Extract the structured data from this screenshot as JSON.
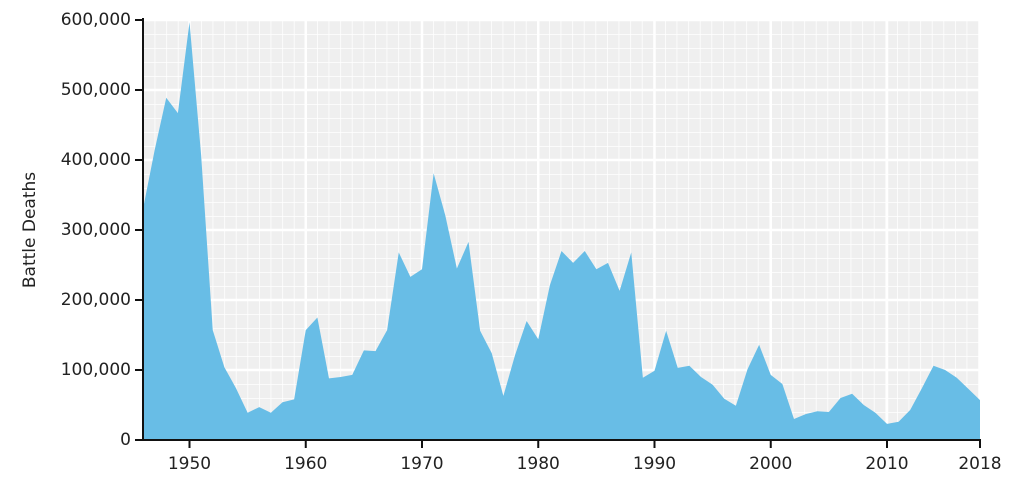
{
  "chart_data": {
    "type": "area",
    "y_label": "Battle Deaths",
    "x": [
      1946,
      1947,
      1948,
      1949,
      1950,
      1951,
      1952,
      1953,
      1954,
      1955,
      1956,
      1957,
      1958,
      1959,
      1960,
      1961,
      1962,
      1963,
      1964,
      1965,
      1966,
      1967,
      1968,
      1969,
      1970,
      1971,
      1972,
      1973,
      1974,
      1975,
      1976,
      1977,
      1978,
      1979,
      1980,
      1981,
      1982,
      1983,
      1984,
      1985,
      1986,
      1987,
      1988,
      1989,
      1990,
      1991,
      1992,
      1993,
      1994,
      1995,
      1996,
      1997,
      1998,
      1999,
      2000,
      2001,
      2002,
      2003,
      2004,
      2005,
      2006,
      2007,
      2008,
      2009,
      2010,
      2011,
      2012,
      2013,
      2014,
      2015,
      2016,
      2017,
      2018
    ],
    "values": [
      330000,
      414000,
      489000,
      467000,
      597000,
      407000,
      157000,
      104000,
      74000,
      39000,
      47000,
      39000,
      54000,
      58000,
      157000,
      175000,
      88000,
      90000,
      93000,
      128000,
      127000,
      157000,
      268000,
      233000,
      244000,
      381000,
      321000,
      245000,
      283000,
      156000,
      124000,
      63000,
      121000,
      170000,
      144000,
      221000,
      270000,
      253000,
      270000,
      244000,
      253000,
      213000,
      268000,
      89000,
      99000,
      156000,
      103000,
      106000,
      90000,
      79000,
      59000,
      49000,
      101000,
      136000,
      93000,
      80000,
      30000,
      37000,
      41000,
      40000,
      60000,
      66000,
      50000,
      39000,
      23000,
      26000,
      43000,
      74000,
      106000,
      100000,
      89000,
      73000,
      57000
    ],
    "color": "#68bde6",
    "xlim": [
      1946,
      2018
    ],
    "xticks": [
      1950,
      1960,
      1970,
      1980,
      1990,
      2000,
      2010,
      2018
    ],
    "ylim": [
      0,
      600000
    ],
    "yticks": [
      0,
      {
        "value": 100000,
        "label": "100,000"
      },
      {
        "value": 200000,
        "label": "200,000"
      },
      {
        "value": 300000,
        "label": "300,000"
      },
      {
        "value": 400000,
        "label": "400,000"
      },
      {
        "value": 500000,
        "label": "500,000"
      },
      {
        "value": 600000,
        "label": "600,000"
      }
    ],
    "grid": true
  }
}
